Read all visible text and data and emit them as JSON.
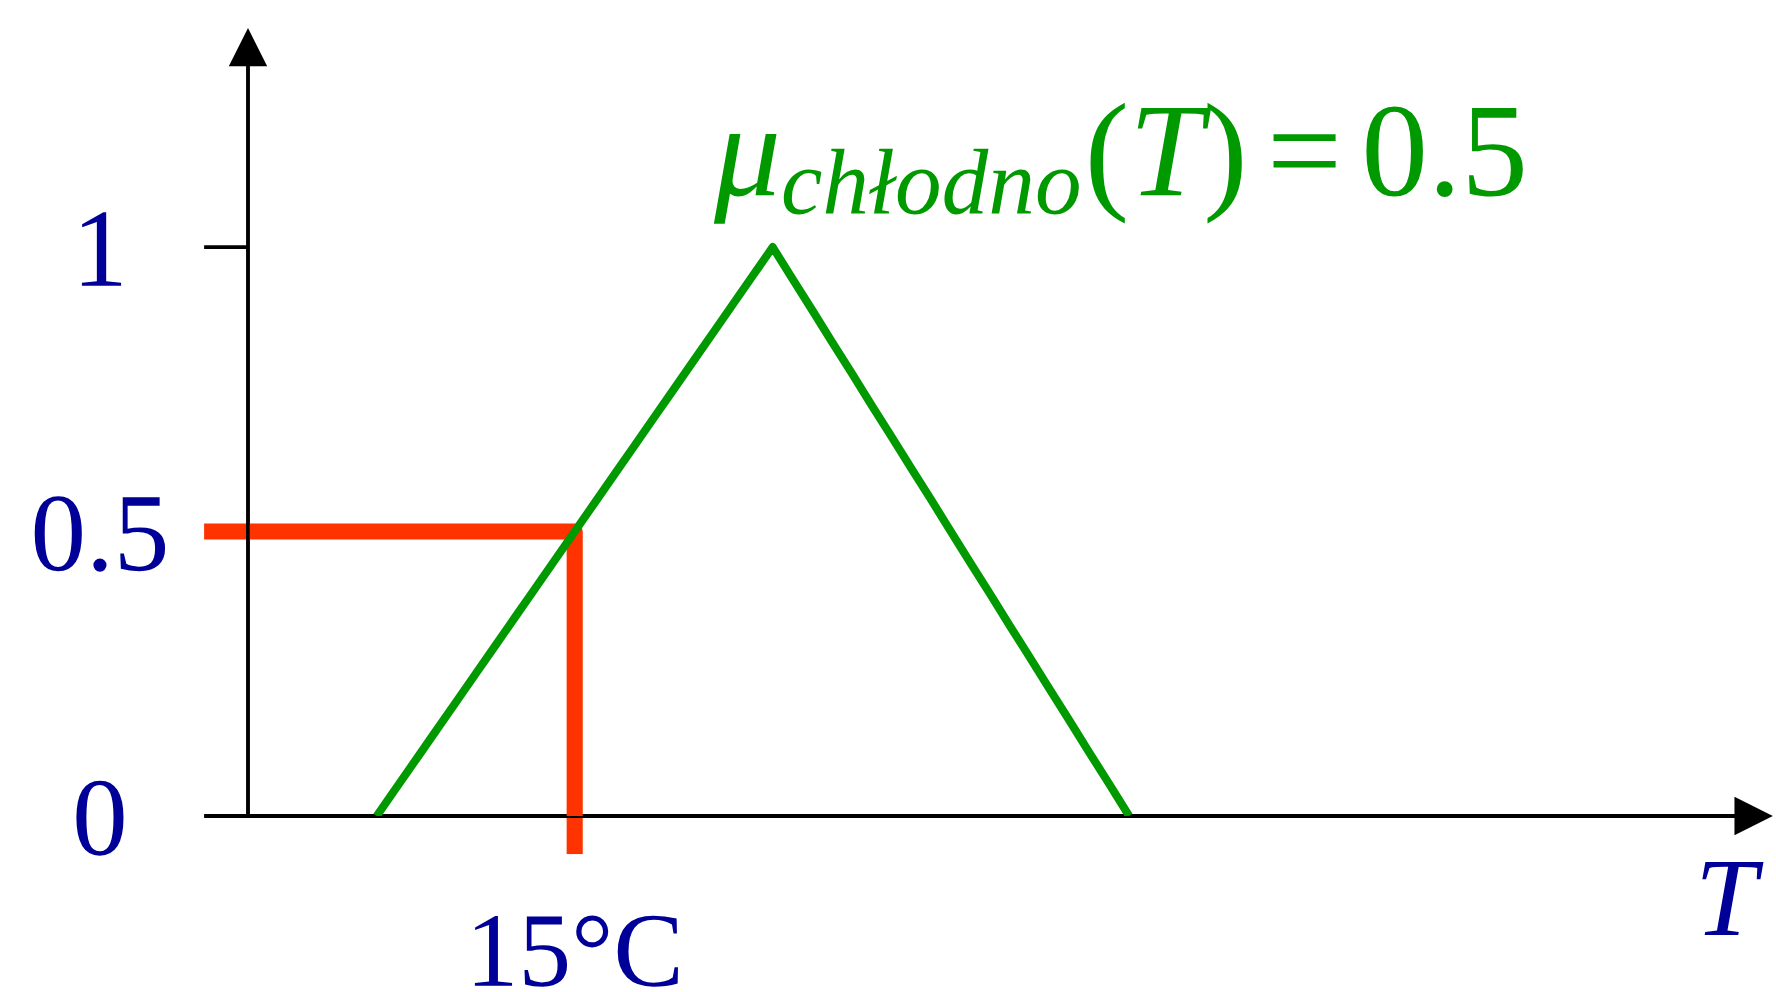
{
  "chart_data": {
    "type": "line",
    "xlabel": "T",
    "annotations": [
      "μ$_{chłodno}$(T)=0.5"
    ],
    "categories": [
      null,
      null,
      null,
      null,
      null,
      null,
      null,
      null,
      null,
      null,
      null,
      null,
      null,
      null,
      null,
      null,
      "15°C",
      null,
      null,
      null,
      null,
      null,
      null,
      null,
      null,
      null,
      null,
      null,
      null,
      null,
      null,
      null,
      null,
      null,
      null,
      null,
      null,
      null,
      null,
      null,
      null,
      null,
      null,
      null,
      null,
      null,
      null,
      null,
      null,
      null,
      null,
      null,
      null,
      null,
      null,
      null,
      null,
      null,
      null,
      null,
      null,
      null,
      null,
      null,
      null,
      null,
      null,
      null,
      null,
      null,
      null,
      null,
      null,
      null,
      null,
      null
    ],
    "series": [
      {
        "type": "step",
        "color": "#ff3300",
        "values": [
          0.5,
          0.5,
          0.5,
          0.5,
          0.5,
          0.5,
          0.5,
          0.5,
          0.5,
          0.5,
          0.5,
          0.5,
          0.5,
          0.5,
          0.5,
          0.5,
          0,
          null,
          null,
          null,
          null,
          null,
          null,
          null,
          null,
          null,
          null,
          null,
          null,
          null,
          null,
          null,
          null,
          null,
          null,
          null,
          null,
          null,
          null,
          null,
          null,
          null,
          null,
          null,
          null,
          null,
          null,
          null,
          null,
          null,
          null,
          null,
          null,
          null,
          null,
          null,
          null,
          null,
          null,
          null,
          null,
          null,
          null,
          null,
          null,
          null,
          null,
          null,
          null,
          null,
          null,
          null,
          null,
          null,
          null,
          null
        ]
      },
      {
        "color": "#009900",
        "values": [
          null,
          null,
          null,
          null,
          null,
          null,
          0,
          0.05,
          0.1,
          0.15,
          0.2,
          0.25,
          0.3,
          0.35,
          0.4,
          0.45,
          0.5,
          0.55,
          0.6,
          0.65,
          0.7,
          0.75,
          0.8,
          0.85,
          0.9,
          0.95,
          1,
          0.944,
          0.889,
          0.833,
          0.778,
          0.722,
          0.667,
          0.611,
          0.556,
          0.5,
          0.444,
          0.389,
          0.333,
          0.278,
          0.222,
          0.167,
          0.111,
          0.056,
          0,
          null,
          null,
          null,
          null,
          null,
          null,
          null,
          null,
          null,
          null,
          null,
          null,
          null,
          null,
          null,
          null,
          null,
          null,
          null,
          null,
          null,
          null,
          null,
          null,
          null,
          null,
          null,
          null,
          null,
          null,
          null
        ]
      }
    ],
    "ylim": [
      0,
      1.35
    ],
    "yticks": [
      0,
      0.5,
      1
    ]
  }
}
